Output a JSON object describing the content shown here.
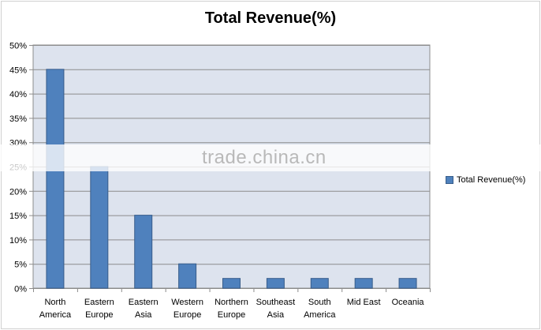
{
  "chart_data": {
    "type": "bar",
    "title": "Total Revenue(%)",
    "categories": [
      [
        "North",
        "America"
      ],
      [
        "Eastern",
        "Europe"
      ],
      [
        "Eastern",
        "Asia"
      ],
      [
        "Western",
        "Europe"
      ],
      [
        "Northern",
        "Europe"
      ],
      [
        "Southeast",
        "Asia"
      ],
      [
        "South",
        "America"
      ],
      [
        "Mid East"
      ],
      [
        "Oceania"
      ]
    ],
    "series": [
      {
        "name": "Total Revenue(%)",
        "values": [
          45,
          25,
          15,
          5,
          2,
          2,
          2,
          2,
          2
        ]
      }
    ],
    "ylim": [
      0,
      50
    ],
    "yticks": [
      0,
      5,
      10,
      15,
      20,
      25,
      30,
      35,
      40,
      45,
      50
    ],
    "ytick_labels": [
      "0%",
      "5%",
      "10%",
      "15%",
      "20%",
      "25%",
      "30%",
      "35%",
      "40%",
      "45%",
      "50%"
    ],
    "grid": true,
    "legend_position": "right",
    "colors": {
      "bar": "#4f81bd",
      "bar_border": "#385d8a",
      "plot_bg": "#dde3ee",
      "grid": "#8c8c8c"
    }
  },
  "watermark": "trade.china.cn"
}
